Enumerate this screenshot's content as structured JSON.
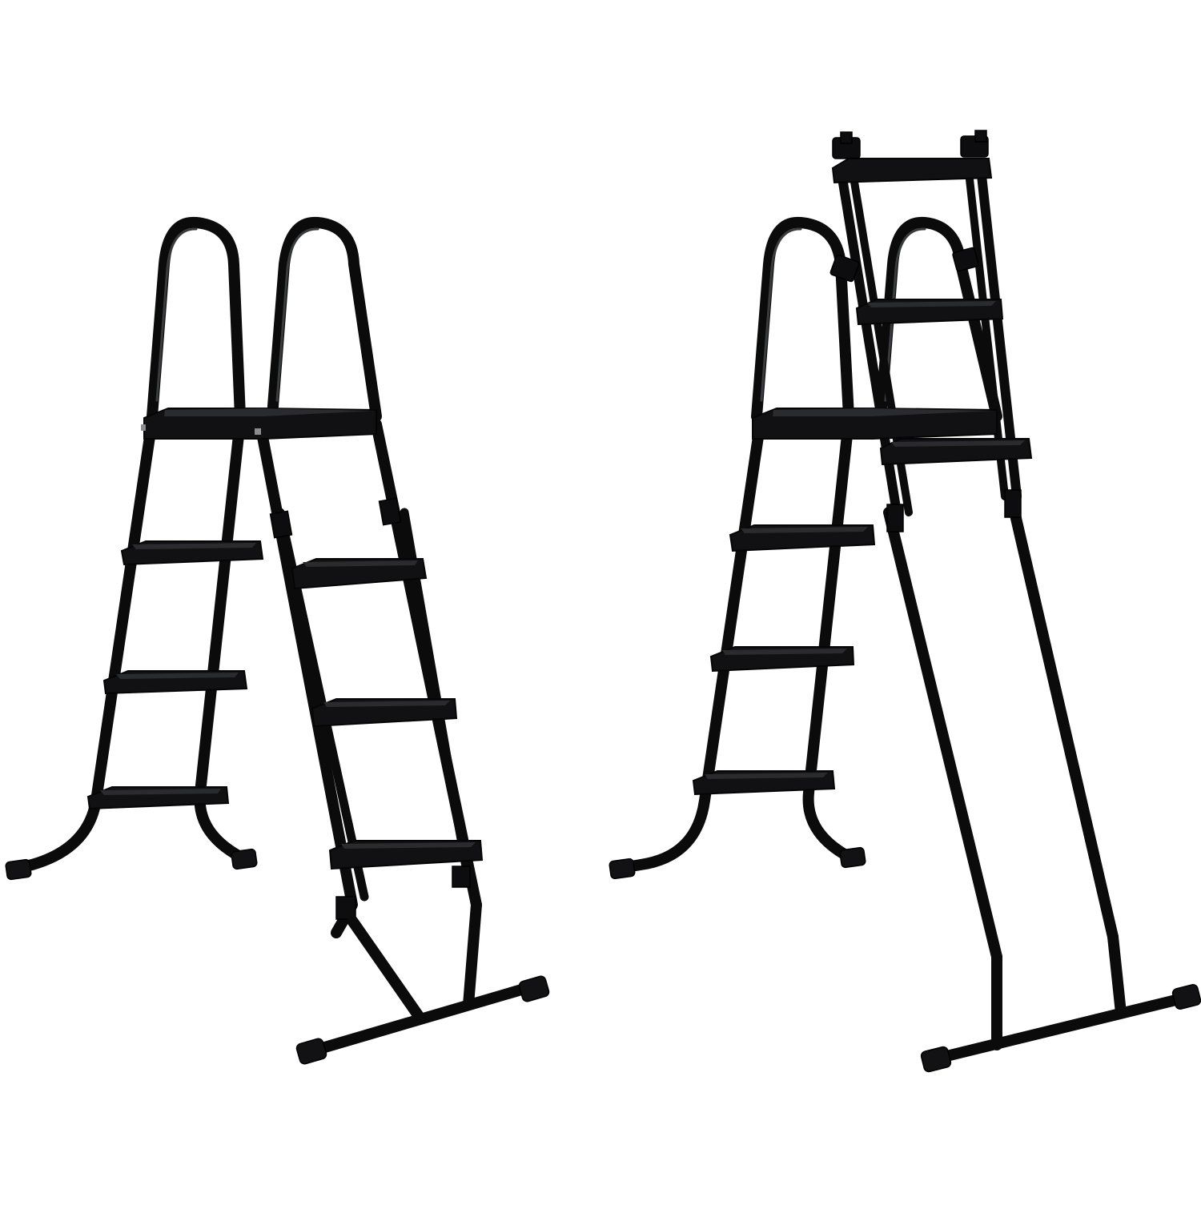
{
  "scene": {
    "background": "#ffffff",
    "colors": {
      "frame": "#0b0b0c",
      "highlight": "#3a3b3f",
      "tread": "#111113",
      "tread_top": "#2a2b2e"
    }
  },
  "ladders": [
    {
      "name": "folded-pool-ladder",
      "steps_outer": 3,
      "steps_inner": 4
    },
    {
      "name": "extended-pool-ladder",
      "steps_outer": 3,
      "steps_inner": 3
    }
  ]
}
